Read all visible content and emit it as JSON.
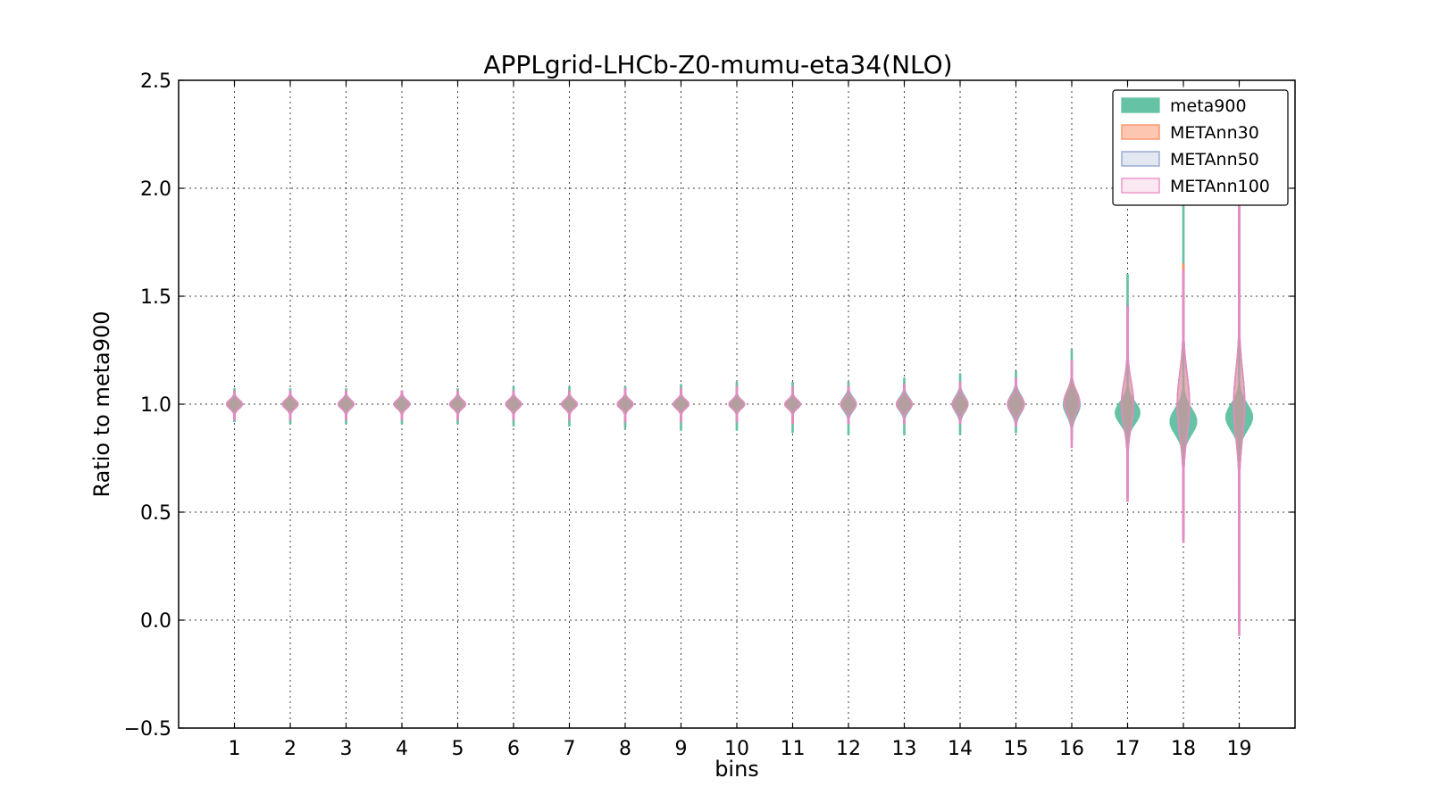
{
  "chart_data": {
    "type": "violin",
    "title": "APPLgrid-LHCb-Z0-mumu-eta34(NLO)",
    "xlabel": "bins",
    "ylabel": "Ratio to meta900",
    "xlim": [
      0,
      20
    ],
    "ylim": [
      -0.5,
      2.5
    ],
    "yticks": [
      -0.5,
      0.0,
      0.5,
      1.0,
      1.5,
      2.0,
      2.5
    ],
    "ytick_labels": [
      "−0.5",
      "0.0",
      "0.5",
      "1.0",
      "1.5",
      "2.0",
      "2.5"
    ],
    "categories": [
      "1",
      "2",
      "3",
      "4",
      "5",
      "6",
      "7",
      "8",
      "9",
      "10",
      "11",
      "12",
      "13",
      "14",
      "15",
      "16",
      "17",
      "18",
      "19"
    ],
    "grid": true,
    "legend_position": "top-right",
    "series": [
      {
        "name": "meta900",
        "color": "#66c2a5",
        "fill_opacity": 1.0,
        "center": [
          1.0,
          1.0,
          1.0,
          1.0,
          1.0,
          1.0,
          1.0,
          1.0,
          1.0,
          1.0,
          1.0,
          1.0,
          1.0,
          1.0,
          1.0,
          1.0,
          0.96,
          0.92,
          0.94
        ],
        "min": [
          0.92,
          0.91,
          0.91,
          0.91,
          0.91,
          0.9,
          0.9,
          0.89,
          0.88,
          0.88,
          0.87,
          0.86,
          0.86,
          0.86,
          0.87,
          0.88,
          0.6,
          0.45,
          0.2
        ],
        "max": [
          1.07,
          1.07,
          1.07,
          1.06,
          1.07,
          1.08,
          1.08,
          1.08,
          1.09,
          1.1,
          1.1,
          1.1,
          1.12,
          1.14,
          1.15,
          1.25,
          1.6,
          2.05,
          1.8
        ],
        "spread": [
          0.02,
          0.02,
          0.02,
          0.02,
          0.02,
          0.02,
          0.02,
          0.02,
          0.02,
          0.02,
          0.02,
          0.03,
          0.03,
          0.035,
          0.04,
          0.05,
          0.05,
          0.06,
          0.06
        ],
        "max_width": [
          0.28,
          0.28,
          0.28,
          0.28,
          0.28,
          0.28,
          0.28,
          0.28,
          0.28,
          0.28,
          0.28,
          0.28,
          0.28,
          0.28,
          0.3,
          0.3,
          0.44,
          0.48,
          0.48
        ]
      },
      {
        "name": "METAnn30",
        "color": "#fc8d62",
        "fill_opacity": 0.5,
        "center": [
          1.0,
          1.0,
          1.0,
          1.0,
          1.0,
          1.0,
          1.0,
          1.0,
          1.0,
          1.0,
          1.0,
          1.0,
          1.0,
          1.0,
          1.0,
          1.01,
          1.0,
          1.0,
          1.0
        ],
        "min": [
          0.93,
          0.93,
          0.93,
          0.93,
          0.93,
          0.93,
          0.93,
          0.92,
          0.92,
          0.92,
          0.91,
          0.91,
          0.91,
          0.91,
          0.9,
          0.84,
          0.58,
          0.4,
          0.0
        ],
        "max": [
          1.06,
          1.06,
          1.06,
          1.06,
          1.06,
          1.06,
          1.06,
          1.07,
          1.07,
          1.08,
          1.08,
          1.08,
          1.09,
          1.1,
          1.12,
          1.18,
          1.45,
          1.65,
          1.9
        ],
        "spread": [
          0.02,
          0.02,
          0.02,
          0.02,
          0.02,
          0.02,
          0.02,
          0.02,
          0.02,
          0.02,
          0.02,
          0.025,
          0.025,
          0.03,
          0.035,
          0.05,
          0.1,
          0.14,
          0.15
        ],
        "max_width": [
          0.28,
          0.28,
          0.28,
          0.28,
          0.28,
          0.28,
          0.28,
          0.28,
          0.28,
          0.28,
          0.28,
          0.28,
          0.28,
          0.28,
          0.3,
          0.28,
          0.22,
          0.22,
          0.2
        ]
      },
      {
        "name": "METAnn50",
        "color": "#8da0cb",
        "fill_opacity": 0.25,
        "center": [
          1.0,
          1.0,
          1.0,
          1.0,
          1.0,
          1.0,
          1.0,
          1.0,
          1.0,
          1.0,
          1.0,
          1.0,
          1.0,
          1.0,
          1.0,
          1.01,
          1.0,
          1.0,
          1.0
        ],
        "min": [
          0.93,
          0.93,
          0.93,
          0.93,
          0.93,
          0.93,
          0.93,
          0.92,
          0.92,
          0.92,
          0.91,
          0.91,
          0.91,
          0.91,
          0.9,
          0.84,
          0.57,
          0.38,
          -0.02
        ],
        "max": [
          1.06,
          1.06,
          1.06,
          1.06,
          1.06,
          1.06,
          1.06,
          1.07,
          1.07,
          1.08,
          1.08,
          1.08,
          1.09,
          1.1,
          1.12,
          1.18,
          1.46,
          1.6,
          1.95
        ],
        "spread": [
          0.02,
          0.02,
          0.02,
          0.02,
          0.02,
          0.02,
          0.02,
          0.02,
          0.02,
          0.02,
          0.02,
          0.025,
          0.025,
          0.03,
          0.035,
          0.05,
          0.1,
          0.14,
          0.15
        ],
        "max_width": [
          0.28,
          0.28,
          0.28,
          0.28,
          0.28,
          0.28,
          0.28,
          0.28,
          0.28,
          0.28,
          0.28,
          0.28,
          0.28,
          0.28,
          0.3,
          0.28,
          0.22,
          0.22,
          0.2
        ]
      },
      {
        "name": "METAnn100",
        "color": "#e78ac3",
        "fill_opacity": 0.2,
        "center": [
          1.0,
          1.0,
          1.0,
          1.0,
          1.0,
          1.0,
          1.0,
          1.0,
          1.0,
          1.0,
          1.0,
          1.0,
          1.0,
          1.0,
          1.0,
          1.01,
          1.0,
          1.0,
          1.0
        ],
        "min": [
          0.93,
          0.93,
          0.93,
          0.93,
          0.93,
          0.93,
          0.93,
          0.92,
          0.92,
          0.92,
          0.91,
          0.91,
          0.91,
          0.91,
          0.9,
          0.8,
          0.55,
          0.36,
          -0.07
        ],
        "max": [
          1.06,
          1.06,
          1.06,
          1.06,
          1.06,
          1.06,
          1.06,
          1.07,
          1.07,
          1.08,
          1.08,
          1.08,
          1.09,
          1.1,
          1.12,
          1.2,
          1.45,
          1.62,
          2.0
        ],
        "spread": [
          0.02,
          0.02,
          0.02,
          0.02,
          0.02,
          0.02,
          0.02,
          0.02,
          0.02,
          0.02,
          0.02,
          0.025,
          0.025,
          0.03,
          0.035,
          0.05,
          0.1,
          0.14,
          0.15
        ],
        "max_width": [
          0.28,
          0.28,
          0.28,
          0.28,
          0.28,
          0.28,
          0.28,
          0.28,
          0.28,
          0.28,
          0.28,
          0.28,
          0.28,
          0.28,
          0.3,
          0.28,
          0.22,
          0.22,
          0.2
        ]
      }
    ]
  }
}
